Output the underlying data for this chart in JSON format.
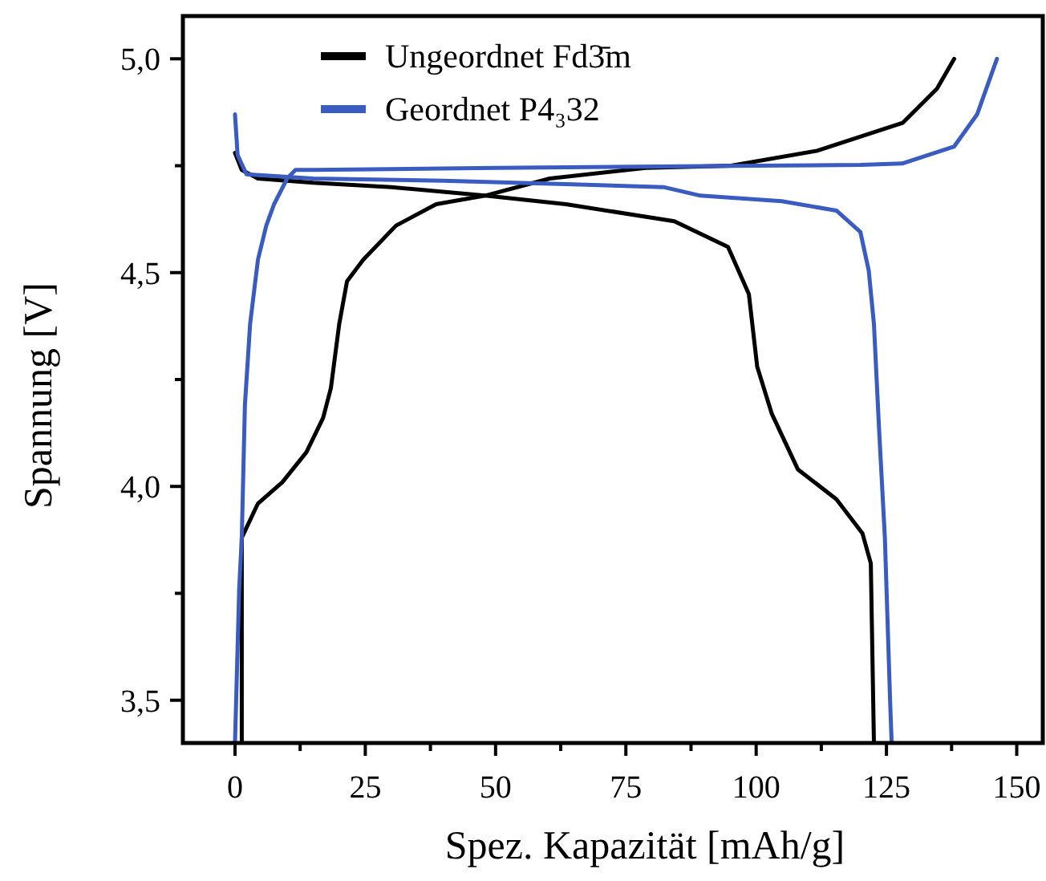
{
  "chart_data": {
    "type": "line",
    "xlabel": "Spez. Kapazität [mAh/g]",
    "ylabel": "Spannung [V]",
    "xlim": [
      -10,
      155
    ],
    "ylim": [
      3.4,
      5.1
    ],
    "xticks": [
      0,
      {
        "value": 12.5,
        "label": null
      },
      25,
      {
        "value": 37.5,
        "label": null
      },
      50,
      {
        "value": 62.5,
        "label": null
      },
      75,
      {
        "value": 87.5,
        "label": null
      },
      100,
      {
        "value": 112.5,
        "label": null
      },
      125,
      {
        "value": 137.5,
        "label": null
      },
      150
    ],
    "yticks": [
      {
        "value": 3.5,
        "label": "3,5"
      },
      {
        "value": 3.75,
        "label": null
      },
      {
        "value": 4.0,
        "label": "4,0"
      },
      {
        "value": 4.25,
        "label": null
      },
      {
        "value": 4.5,
        "label": "4,5"
      },
      {
        "value": 4.75,
        "label": null
      },
      {
        "value": 5.0,
        "label": "5,0"
      }
    ],
    "legend": "top left",
    "grid": false,
    "marker": "none",
    "line_style": "solid",
    "series": [
      {
        "name": "Ungeordnet Fd3̄m",
        "color": "#000000",
        "x": [
          1.3,
          1.3,
          4.4,
          9.1,
          13.7,
          16.9,
          18.4,
          20,
          21.5,
          24.6,
          30.9,
          38.6,
          48,
          60.4,
          78.8,
          95.2,
          111.7,
          128.1,
          134.7,
          138
        ],
        "values": [
          3.4,
          3.88,
          3.96,
          4.01,
          4.08,
          4.16,
          4.23,
          4.38,
          4.48,
          4.53,
          4.61,
          4.66,
          4.68,
          4.72,
          4.745,
          4.75,
          4.785,
          4.85,
          4.93,
          5.0
        ]
      },
      {
        "color": "#000000",
        "x": [
          0,
          1.3,
          4.4,
          15,
          30,
          48,
          63.5,
          84.3,
          94.6,
          98.6,
          100.2,
          103,
          108,
          115.4,
          120.4,
          122,
          122.6
        ],
        "values": [
          4.78,
          4.74,
          4.72,
          4.71,
          4.7,
          4.68,
          4.66,
          4.62,
          4.56,
          4.45,
          4.28,
          4.17,
          4.04,
          3.97,
          3.89,
          3.82,
          3.4
        ]
      },
      {
        "name": "Geordnet P4₃32",
        "color": "#3a5bbf",
        "x": [
          0,
          0.8,
          1.3,
          1.9,
          2.9,
          4.4,
          6,
          7.5,
          10,
          11.6,
          15.3,
          50,
          100,
          120,
          128,
          138,
          142.4,
          146.2
        ],
        "values": [
          3.4,
          3.76,
          3.88,
          4.19,
          4.38,
          4.53,
          4.61,
          4.66,
          4.72,
          4.74,
          4.74,
          4.745,
          4.75,
          4.752,
          4.755,
          4.795,
          4.87,
          5.0
        ]
      },
      {
        "color": "#3a5bbf",
        "x": [
          0,
          0.5,
          2.2,
          15,
          40,
          63.5,
          82.2,
          89.3,
          104.9,
          115.4,
          120,
          121.6,
          122.6,
          123.6,
          124.7,
          125.7,
          126
        ],
        "values": [
          4.87,
          4.775,
          4.73,
          4.72,
          4.715,
          4.707,
          4.7,
          4.68,
          4.667,
          4.645,
          4.595,
          4.505,
          4.38,
          4.13,
          3.88,
          3.5,
          3.4
        ]
      }
    ]
  }
}
